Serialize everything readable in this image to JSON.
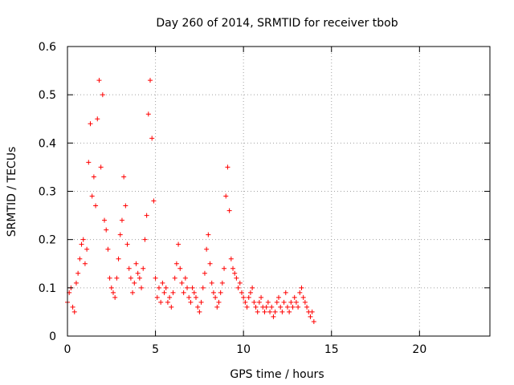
{
  "chart_data": {
    "type": "scatter",
    "title": "Day 260 of 2014, SRMTID for receiver tbob",
    "xlabel": "GPS time / hours",
    "ylabel": "SRMTID / TECUs",
    "xlim": [
      0,
      24
    ],
    "ylim": [
      0,
      0.6
    ],
    "xticks": [
      0,
      5,
      10,
      15,
      20
    ],
    "xtick_labels": [
      "0",
      "5",
      "10",
      "15",
      "20"
    ],
    "yticks": [
      0,
      0.1,
      0.2,
      0.3,
      0.4,
      0.5,
      0.6
    ],
    "ytick_labels": [
      "0",
      "0.1",
      "0.2",
      "0.3",
      "0.4",
      "0.5",
      "0.6"
    ],
    "grid": true,
    "marker": "+",
    "color": "#ff0000",
    "series": [
      {
        "name": "SRMTID",
        "x": [
          0.0,
          0.1,
          0.2,
          0.3,
          0.4,
          0.5,
          0.6,
          0.7,
          0.8,
          0.9,
          1.0,
          1.1,
          1.2,
          1.3,
          1.4,
          1.5,
          1.6,
          1.7,
          1.8,
          1.9,
          2.0,
          2.1,
          2.2,
          2.3,
          2.4,
          2.5,
          2.6,
          2.7,
          2.8,
          2.9,
          3.0,
          3.1,
          3.2,
          3.3,
          3.4,
          3.5,
          3.6,
          3.7,
          3.8,
          3.9,
          4.0,
          4.1,
          4.2,
          4.3,
          4.4,
          4.5,
          4.6,
          4.7,
          4.8,
          4.9,
          5.0,
          5.1,
          5.2,
          5.3,
          5.4,
          5.5,
          5.6,
          5.7,
          5.8,
          5.9,
          6.0,
          6.1,
          6.2,
          6.3,
          6.4,
          6.5,
          6.6,
          6.7,
          6.8,
          6.9,
          7.0,
          7.1,
          7.2,
          7.3,
          7.4,
          7.5,
          7.6,
          7.7,
          7.8,
          7.9,
          8.0,
          8.1,
          8.2,
          8.3,
          8.4,
          8.5,
          8.6,
          8.7,
          8.8,
          8.9,
          9.0,
          9.1,
          9.2,
          9.3,
          9.4,
          9.5,
          9.6,
          9.7,
          9.8,
          9.9,
          10.0,
          10.1,
          10.2,
          10.3,
          10.4,
          10.5,
          10.6,
          10.7,
          10.8,
          10.9,
          11.0,
          11.1,
          11.2,
          11.3,
          11.4,
          11.5,
          11.6,
          11.7,
          11.8,
          11.9,
          12.0,
          12.1,
          12.2,
          12.3,
          12.4,
          12.5,
          12.6,
          12.7,
          12.8,
          12.9,
          13.0,
          13.1,
          13.2,
          13.3,
          13.4,
          13.5,
          13.6,
          13.7,
          13.8,
          13.9,
          14.0
        ],
        "y": [
          0.07,
          0.09,
          0.1,
          0.06,
          0.05,
          0.11,
          0.13,
          0.16,
          0.19,
          0.2,
          0.15,
          0.18,
          0.36,
          0.44,
          0.29,
          0.33,
          0.27,
          0.45,
          0.53,
          0.35,
          0.5,
          0.24,
          0.22,
          0.18,
          0.12,
          0.1,
          0.09,
          0.08,
          0.12,
          0.16,
          0.21,
          0.24,
          0.33,
          0.27,
          0.19,
          0.14,
          0.12,
          0.09,
          0.11,
          0.15,
          0.13,
          0.12,
          0.1,
          0.14,
          0.2,
          0.25,
          0.46,
          0.53,
          0.41,
          0.28,
          0.12,
          0.08,
          0.1,
          0.07,
          0.11,
          0.09,
          0.1,
          0.07,
          0.08,
          0.06,
          0.09,
          0.12,
          0.15,
          0.19,
          0.14,
          0.11,
          0.09,
          0.12,
          0.1,
          0.08,
          0.07,
          0.1,
          0.09,
          0.08,
          0.06,
          0.05,
          0.07,
          0.1,
          0.13,
          0.18,
          0.21,
          0.15,
          0.11,
          0.09,
          0.08,
          0.06,
          0.07,
          0.09,
          0.11,
          0.14,
          0.29,
          0.35,
          0.26,
          0.16,
          0.14,
          0.13,
          0.12,
          0.1,
          0.11,
          0.09,
          0.08,
          0.07,
          0.06,
          0.08,
          0.09,
          0.1,
          0.07,
          0.06,
          0.05,
          0.07,
          0.08,
          0.06,
          0.05,
          0.06,
          0.07,
          0.05,
          0.06,
          0.04,
          0.05,
          0.07,
          0.08,
          0.06,
          0.05,
          0.07,
          0.09,
          0.06,
          0.05,
          0.07,
          0.06,
          0.08,
          0.07,
          0.06,
          0.09,
          0.1,
          0.08,
          0.07,
          0.06,
          0.05,
          0.04,
          0.05,
          0.03
        ]
      }
    ]
  }
}
